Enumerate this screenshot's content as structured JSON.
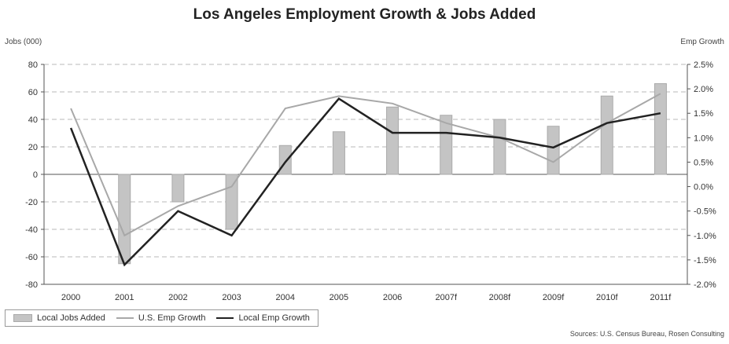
{
  "title": "Los Angeles Employment Growth & Jobs Added",
  "left_axis_label": "Jobs (000)",
  "right_axis_label": "Emp Growth",
  "source": "Sources: U.S. Census Bureau, Rosen Consulting",
  "legend": {
    "bar": "Local Jobs Added",
    "us": "U.S. Emp Growth",
    "local": "Local Emp Growth"
  },
  "chart_data": {
    "type": "bar",
    "title": "Los Angeles Employment Growth & Jobs Added",
    "categories": [
      "2000",
      "2001",
      "2002",
      "2003",
      "2004",
      "2005",
      "2006",
      "2007f",
      "2008f",
      "2009f",
      "2010f",
      "2011f"
    ],
    "bars": {
      "name": "Local Jobs Added",
      "axis": "left",
      "values": [
        0,
        -65,
        -20,
        -40,
        21,
        31,
        49,
        43,
        40,
        35,
        57,
        66
      ]
    },
    "series": [
      {
        "name": "U.S. Emp Growth",
        "type": "line",
        "axis": "right",
        "values": [
          1.6,
          -1.0,
          -0.4,
          0.0,
          1.6,
          1.85,
          1.7,
          1.3,
          1.0,
          0.5,
          1.3,
          1.9
        ]
      },
      {
        "name": "Local Emp Growth",
        "type": "line",
        "axis": "right",
        "values": [
          1.2,
          -1.6,
          -0.5,
          -1.0,
          0.5,
          1.8,
          1.1,
          1.1,
          1.0,
          0.8,
          1.3,
          1.5
        ]
      }
    ],
    "ylabel": "Jobs (000)",
    "ylim": [
      -80,
      80
    ],
    "yticks": [
      "80",
      "60",
      "40",
      "20",
      "0",
      "-20",
      "-40",
      "-60",
      "-80"
    ],
    "y2label": "Emp Growth",
    "y2lim": [
      -2.0,
      2.5
    ],
    "y2ticks": [
      "2.5%",
      "2.0%",
      "1.5%",
      "1.0%",
      "0.5%",
      "0.0%",
      "-0.5%",
      "-1.0%",
      "-1.5%",
      "-2.0%"
    ],
    "grid": true,
    "legend_position": "bottom-left",
    "colors": {
      "bars": "#c4c4c4",
      "us": "#a8a8a8",
      "local": "#222222"
    }
  }
}
